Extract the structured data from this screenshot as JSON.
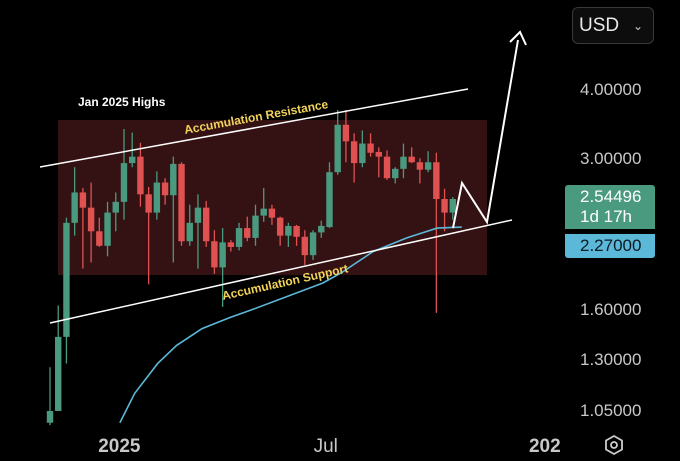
{
  "currency_selector": {
    "label": "USD",
    "icon": "chevron-down-icon"
  },
  "settings_icon": "hexagon-settings-icon",
  "price_badge": {
    "price": "2.54496",
    "countdown": "1d 17h",
    "color": "#4a9a80"
  },
  "ma_badge": {
    "value": "2.27000",
    "color": "#5bb8d8"
  },
  "annotations": {
    "jan_highs": "Jan 2025 Highs",
    "resistance": "Accumulation Resistance",
    "support": "Accumulation Support"
  },
  "chart_data": {
    "type": "candlestick",
    "y_scale": "log",
    "ylim": [
      0.98,
      5.2
    ],
    "y_ticks": [
      {
        "value": 4.0,
        "label": "4.00000"
      },
      {
        "value": 3.0,
        "label": "3.00000"
      },
      {
        "value": 1.6,
        "label": "1.60000"
      },
      {
        "value": 1.3,
        "label": "1.30000"
      },
      {
        "value": 1.05,
        "label": "1.05000"
      }
    ],
    "x_ticks": [
      {
        "index": 8.3,
        "label": "2025",
        "bold": true
      },
      {
        "index": 34.5,
        "label": "Jul",
        "bold": false
      },
      {
        "index": 60.7,
        "label": "202",
        "bold": true
      }
    ],
    "colors": {
      "up": "#4a9a80",
      "down": "#e05252",
      "ma": "#5bb8d8",
      "zone": "#3a1416"
    },
    "ohlc": [
      [
        1.0,
        1.26,
        0.99,
        1.05
      ],
      [
        1.05,
        1.63,
        1.05,
        1.43
      ],
      [
        1.43,
        2.35,
        1.28,
        2.3
      ],
      [
        2.3,
        2.9,
        2.18,
        2.61
      ],
      [
        2.61,
        2.66,
        1.9,
        2.45
      ],
      [
        2.45,
        2.72,
        1.95,
        2.22
      ],
      [
        2.22,
        2.35,
        2.08,
        2.09
      ],
      [
        2.09,
        2.51,
        2.0,
        2.4
      ],
      [
        2.4,
        2.61,
        2.22,
        2.51
      ],
      [
        2.51,
        3.4,
        2.33,
        2.95
      ],
      [
        2.95,
        3.35,
        2.9,
        3.03
      ],
      [
        3.03,
        3.21,
        2.46,
        2.59
      ],
      [
        2.59,
        2.67,
        1.78,
        2.4
      ],
      [
        2.4,
        2.85,
        2.33,
        2.72
      ],
      [
        2.72,
        2.77,
        2.48,
        2.58
      ],
      [
        2.58,
        3.03,
        1.95,
        2.94
      ],
      [
        2.94,
        2.96,
        2.09,
        2.13
      ],
      [
        2.13,
        2.48,
        2.09,
        2.3
      ],
      [
        2.3,
        2.59,
        1.9,
        2.45
      ],
      [
        2.45,
        2.52,
        2.08,
        2.13
      ],
      [
        2.13,
        2.23,
        1.86,
        1.91
      ],
      [
        1.91,
        2.25,
        1.62,
        2.12
      ],
      [
        2.12,
        2.14,
        2.04,
        2.08
      ],
      [
        2.08,
        2.3,
        2.05,
        2.25
      ],
      [
        2.25,
        2.36,
        2.13,
        2.16
      ],
      [
        2.16,
        2.48,
        2.09,
        2.37
      ],
      [
        2.37,
        2.66,
        2.31,
        2.44
      ],
      [
        2.44,
        2.48,
        2.28,
        2.35
      ],
      [
        2.35,
        2.36,
        2.09,
        2.18
      ],
      [
        2.18,
        2.3,
        2.08,
        2.27
      ],
      [
        2.27,
        2.28,
        2.09,
        2.17
      ],
      [
        2.17,
        2.23,
        1.93,
        2.01
      ],
      [
        2.01,
        2.23,
        1.97,
        2.21
      ],
      [
        2.21,
        2.32,
        2.16,
        2.27
      ],
      [
        2.26,
        2.96,
        2.25,
        2.84
      ],
      [
        2.84,
        3.68,
        2.81,
        3.46
      ],
      [
        3.46,
        3.68,
        2.96,
        3.23
      ],
      [
        3.23,
        3.34,
        2.72,
        2.95
      ],
      [
        2.95,
        3.38,
        2.9,
        3.2
      ],
      [
        3.2,
        3.34,
        3.03,
        3.08
      ],
      [
        3.09,
        3.15,
        2.78,
        3.03
      ],
      [
        3.03,
        3.11,
        2.75,
        2.77
      ],
      [
        2.77,
        2.9,
        2.71,
        2.88
      ],
      [
        2.88,
        3.2,
        2.77,
        3.03
      ],
      [
        3.03,
        3.15,
        2.95,
        2.96
      ],
      [
        2.96,
        3.01,
        2.71,
        2.87
      ],
      [
        2.87,
        3.1,
        2.84,
        2.96
      ],
      [
        2.96,
        3.08,
        1.58,
        2.54
      ],
      [
        2.54,
        2.65,
        2.22,
        2.4
      ],
      [
        2.4,
        2.56,
        2.33,
        2.54
      ]
    ],
    "moving_average": [
      [
        8.5,
        1.0
      ],
      [
        10.3,
        1.13
      ],
      [
        13.1,
        1.28
      ],
      [
        15.4,
        1.38
      ],
      [
        18.5,
        1.48
      ],
      [
        21.9,
        1.55
      ],
      [
        24.5,
        1.6
      ],
      [
        33.2,
        1.79
      ],
      [
        35.5,
        1.87
      ],
      [
        39.3,
        2.04
      ],
      [
        43.4,
        2.16
      ],
      [
        47.1,
        2.25
      ],
      [
        50.1,
        2.26
      ]
    ],
    "zone": {
      "top": 3.53,
      "bottom": 1.85
    }
  }
}
